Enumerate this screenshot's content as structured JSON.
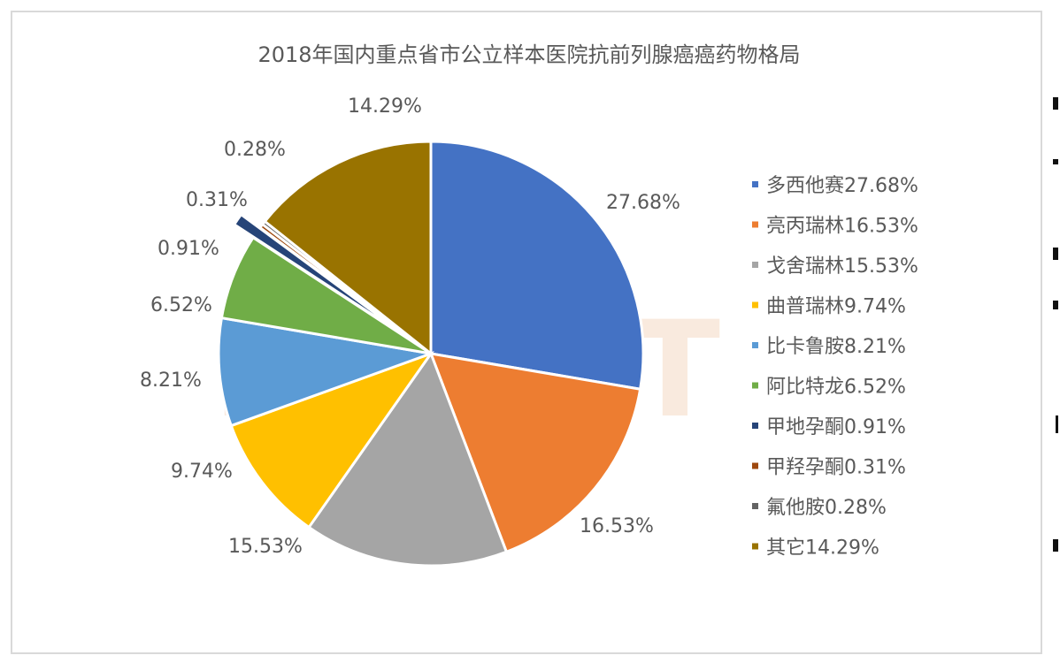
{
  "chart_data": {
    "type": "pie",
    "title": "2018年国内重点省市公立样本医院抗前列腺癌癌药物格局",
    "series": [
      {
        "name": "多西他赛",
        "value": 27.68,
        "label": "27.68%",
        "legend": "多西他赛27.68%",
        "color": "#4472c4"
      },
      {
        "name": "亮丙瑞林",
        "value": 16.53,
        "label": "16.53%",
        "legend": "亮丙瑞林16.53%",
        "color": "#ed7d31"
      },
      {
        "name": "戈舍瑞林",
        "value": 15.53,
        "label": "15.53%",
        "legend": "戈舍瑞林15.53%",
        "color": "#a5a5a5"
      },
      {
        "name": "曲普瑞林",
        "value": 9.74,
        "label": "9.74%",
        "legend": "曲普瑞林9.74%",
        "color": "#ffc000"
      },
      {
        "name": "比卡鲁胺",
        "value": 8.21,
        "label": "8.21%",
        "legend": "比卡鲁胺8.21%",
        "color": "#5b9bd5"
      },
      {
        "name": "阿比特龙",
        "value": 6.52,
        "label": "6.52%",
        "legend": "阿比特龙6.52%",
        "color": "#70ad47"
      },
      {
        "name": "甲地孕酮",
        "value": 0.91,
        "label": "0.91%",
        "legend": "甲地孕酮0.91%",
        "color": "#264478"
      },
      {
        "name": "甲羟孕酮",
        "value": 0.31,
        "label": "0.31%",
        "legend": "甲羟孕酮0.31%",
        "color": "#9e480e"
      },
      {
        "name": "氟他胺",
        "value": 0.28,
        "label": "0.28%",
        "legend": "氟他胺0.28%",
        "color": "#636363"
      },
      {
        "name": "其它",
        "value": 14.29,
        "label": "14.29%",
        "legend": "其它14.29%",
        "color": "#997300"
      }
    ],
    "legend_position": "right",
    "start_angle": "12 o'clock, clockwise"
  },
  "watermark": "MENET"
}
